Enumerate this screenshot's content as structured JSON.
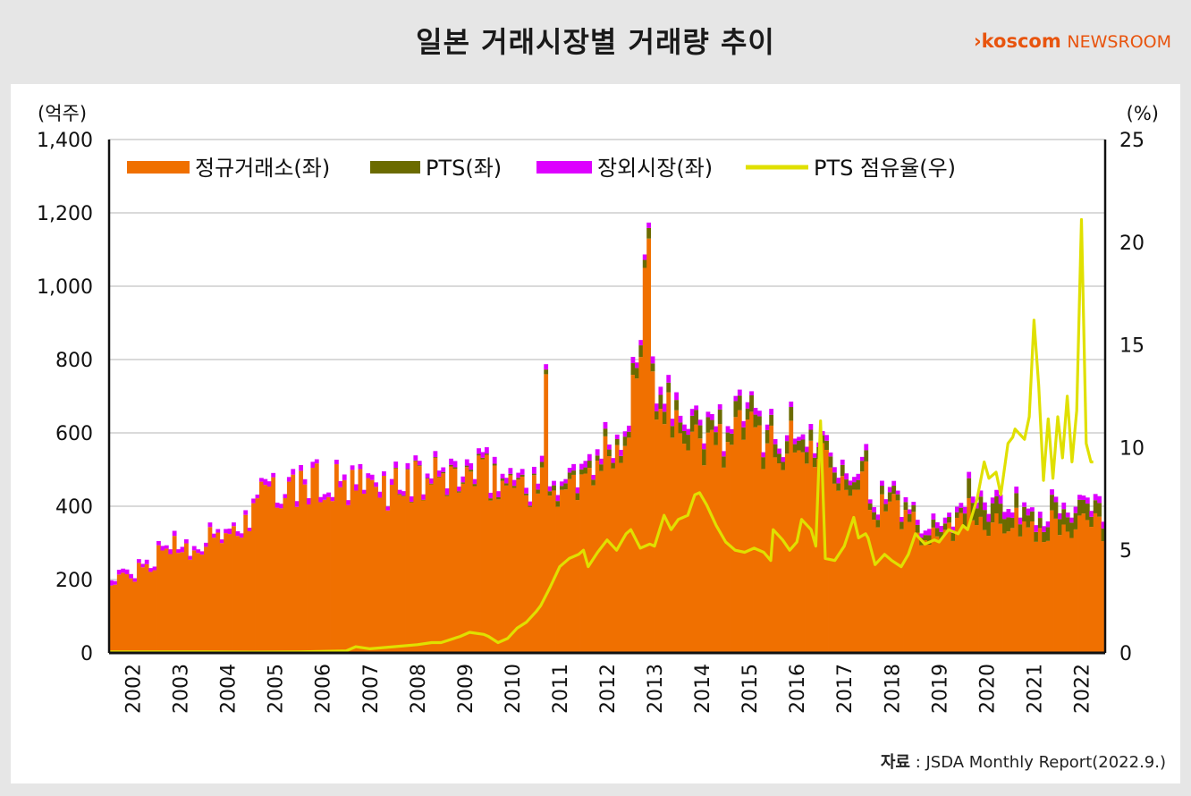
{
  "title": "일본 거래시장별 거래량 추이",
  "logo": {
    "brand": "koscom",
    "suffix": "NEWSROOM",
    "accent": "#e8540e"
  },
  "source": {
    "label": "자료",
    "text": " : JSDA Monthly Report(2022.9.)"
  },
  "chart_data": {
    "type": "bar",
    "stacked": true,
    "left_unit": "(억주)",
    "right_unit": "(%)",
    "ylim_left": [
      0,
      1400
    ],
    "ylim_right": [
      0,
      25
    ],
    "yticks_left": [
      "0",
      "200",
      "400",
      "600",
      "800",
      "1,000",
      "1,200",
      "1,400"
    ],
    "yticks_right": [
      "0",
      "5",
      "10",
      "15",
      "20",
      "25"
    ],
    "x_start": 2002,
    "x_end": 2022.75,
    "years": [
      "2002",
      "2003",
      "2004",
      "2005",
      "2006",
      "2007",
      "2008",
      "2009",
      "2010",
      "2011",
      "2012",
      "2013",
      "2014",
      "2015",
      "2016",
      "2017",
      "2018",
      "2019",
      "2020",
      "2021",
      "2022"
    ],
    "grid": true,
    "legend_placement": "top-left",
    "series": [
      {
        "name": "정규거래소(좌)",
        "kind": "bar",
        "axis": "left",
        "color": "#f07000",
        "yearly": [
          190,
          290,
          300,
          420,
          460,
          440,
          460,
          480,
          470,
          450,
          460,
          780,
          560,
          600,
          560,
          540,
          400,
          330,
          380,
          350,
          340
        ]
      },
      {
        "name": "PTS(좌)",
        "kind": "bar",
        "axis": "left",
        "color": "#6b6b00",
        "yearly": [
          0,
          0,
          0,
          0,
          0,
          0,
          2,
          5,
          5,
          15,
          20,
          30,
          35,
          35,
          30,
          25,
          20,
          20,
          45,
          35,
          35
        ]
      },
      {
        "name": "장외시장(좌)",
        "kind": "bar",
        "axis": "left",
        "color": "#dd00ff",
        "yearly": [
          12,
          12,
          12,
          13,
          14,
          14,
          14,
          15,
          15,
          15,
          15,
          18,
          15,
          15,
          14,
          14,
          12,
          14,
          20,
          15,
          15
        ]
      },
      {
        "name": "PTS 점유율(우)",
        "kind": "line",
        "axis": "right",
        "color": "#e0e000",
        "points": [
          [
            2002,
            0.05
          ],
          [
            2003,
            0.05
          ],
          [
            2004,
            0.05
          ],
          [
            2005,
            0.04
          ],
          [
            2006,
            0.05
          ],
          [
            2007,
            0.1
          ],
          [
            2007.2,
            0.3
          ],
          [
            2007.5,
            0.2
          ],
          [
            2008,
            0.3
          ],
          [
            2008.5,
            0.4
          ],
          [
            2008.8,
            0.5
          ],
          [
            2009,
            0.5
          ],
          [
            2009.4,
            0.8
          ],
          [
            2009.6,
            1.0
          ],
          [
            2009.9,
            0.9
          ],
          [
            2010,
            0.8
          ],
          [
            2010.2,
            0.5
          ],
          [
            2010.4,
            0.7
          ],
          [
            2010.6,
            1.2
          ],
          [
            2010.8,
            1.5
          ],
          [
            2011,
            2.0
          ],
          [
            2011.1,
            2.3
          ],
          [
            2011.3,
            3.2
          ],
          [
            2011.5,
            4.2
          ],
          [
            2011.7,
            4.6
          ],
          [
            2011.9,
            4.8
          ],
          [
            2012,
            5.0
          ],
          [
            2012.1,
            4.2
          ],
          [
            2012.3,
            4.9
          ],
          [
            2012.5,
            5.5
          ],
          [
            2012.7,
            5.0
          ],
          [
            2012.9,
            5.8
          ],
          [
            2013,
            6.0
          ],
          [
            2013.2,
            5.1
          ],
          [
            2013.4,
            5.3
          ],
          [
            2013.5,
            5.2
          ],
          [
            2013.7,
            6.7
          ],
          [
            2013.85,
            6.0
          ],
          [
            2014,
            6.5
          ],
          [
            2014.2,
            6.7
          ],
          [
            2014.35,
            7.7
          ],
          [
            2014.45,
            7.8
          ],
          [
            2014.6,
            7.2
          ],
          [
            2014.8,
            6.2
          ],
          [
            2015,
            5.4
          ],
          [
            2015.2,
            5.0
          ],
          [
            2015.4,
            4.9
          ],
          [
            2015.6,
            5.1
          ],
          [
            2015.8,
            4.9
          ],
          [
            2015.95,
            4.5
          ],
          [
            2016,
            6.0
          ],
          [
            2016.2,
            5.5
          ],
          [
            2016.35,
            5.0
          ],
          [
            2016.5,
            5.4
          ],
          [
            2016.6,
            6.5
          ],
          [
            2016.8,
            6.0
          ],
          [
            2016.9,
            5.2
          ],
          [
            2017,
            11.3
          ],
          [
            2017.1,
            4.6
          ],
          [
            2017.3,
            4.5
          ],
          [
            2017.5,
            5.2
          ],
          [
            2017.7,
            6.6
          ],
          [
            2017.8,
            5.6
          ],
          [
            2017.95,
            5.8
          ],
          [
            2018,
            5.6
          ],
          [
            2018.15,
            4.3
          ],
          [
            2018.35,
            4.8
          ],
          [
            2018.5,
            4.5
          ],
          [
            2018.7,
            4.2
          ],
          [
            2018.85,
            4.8
          ],
          [
            2019,
            5.8
          ],
          [
            2019.2,
            5.3
          ],
          [
            2019.4,
            5.5
          ],
          [
            2019.5,
            5.4
          ],
          [
            2019.7,
            6.0
          ],
          [
            2019.9,
            5.8
          ],
          [
            2020,
            6.2
          ],
          [
            2020.1,
            6.0
          ],
          [
            2020.3,
            7.5
          ],
          [
            2020.45,
            9.3
          ],
          [
            2020.55,
            8.5
          ],
          [
            2020.7,
            8.8
          ],
          [
            2020.8,
            7.7
          ],
          [
            2020.95,
            10.2
          ],
          [
            2021.05,
            10.5
          ],
          [
            2021.1,
            10.9
          ],
          [
            2021.3,
            10.4
          ],
          [
            2021.4,
            11.5
          ],
          [
            2021.5,
            16.2
          ],
          [
            2021.6,
            13.0
          ],
          [
            2021.7,
            8.4
          ],
          [
            2021.8,
            11.4
          ],
          [
            2021.9,
            8.5
          ],
          [
            2022,
            11.5
          ],
          [
            2022.1,
            9.5
          ],
          [
            2022.2,
            12.5
          ],
          [
            2022.3,
            9.3
          ],
          [
            2022.4,
            11.8
          ],
          [
            2022.5,
            21.1
          ],
          [
            2022.6,
            10.2
          ],
          [
            2022.7,
            9.3
          ],
          [
            2022.75,
            9.3
          ]
        ]
      }
    ]
  }
}
